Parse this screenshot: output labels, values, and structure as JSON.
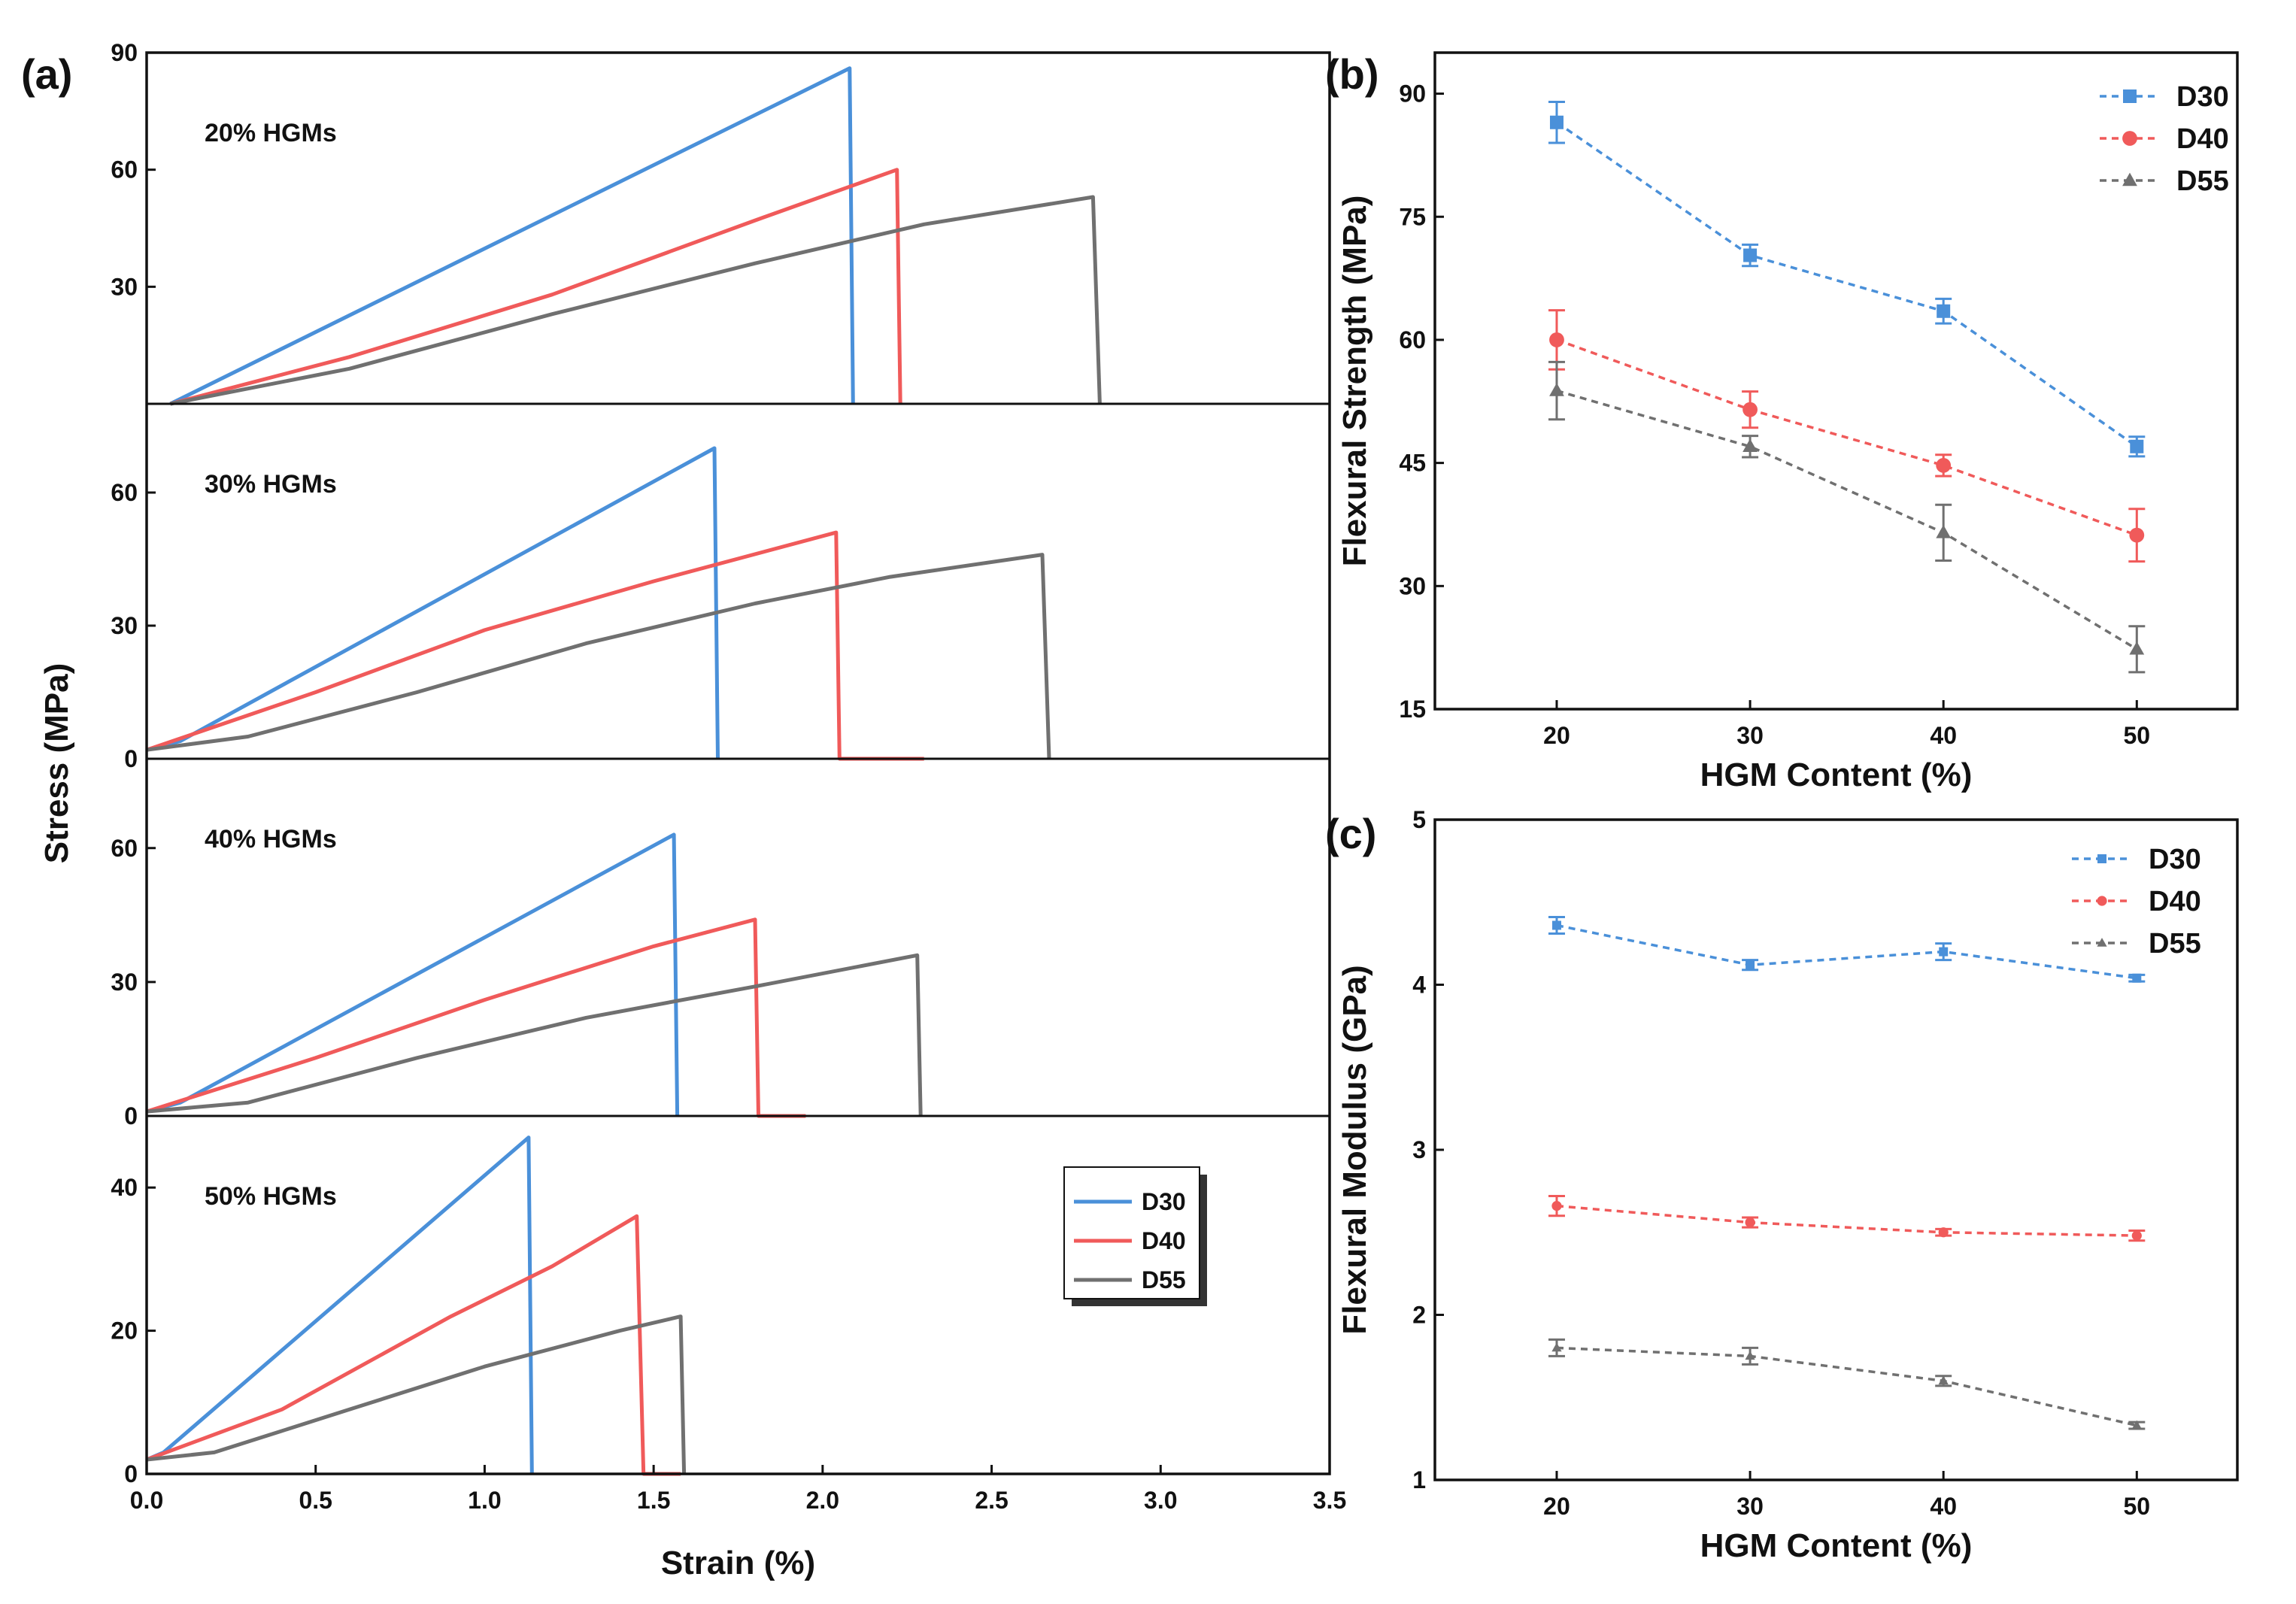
{
  "panel_labels": {
    "a": "(a)",
    "b": "(b)",
    "c": "(c)"
  },
  "colors": {
    "D30": "#4a90d9",
    "D40": "#f05a5a",
    "D55": "#707070"
  },
  "chart_data": [
    {
      "id": "a",
      "type": "line",
      "xlabel": "Strain (%)",
      "ylabel": "Stress (MPa)",
      "xlim": [
        0,
        3.5
      ],
      "xticks": [
        "0.0",
        "0.5",
        "1.0",
        "1.5",
        "2.0",
        "2.5",
        "3.0",
        "3.5"
      ],
      "legend": [
        "D30",
        "D40",
        "D55"
      ],
      "subplots": [
        {
          "title": "20% HGMs",
          "ylim": [
            0,
            90
          ],
          "yticks": [
            "30",
            "60",
            "90"
          ],
          "series": [
            {
              "name": "D30",
              "points": [
                [
                  0.07,
                  0
                ],
                [
                  2.08,
                  86
                ],
                [
                  2.09,
                  0
                ]
              ]
            },
            {
              "name": "D40",
              "points": [
                [
                  0.07,
                  0
                ],
                [
                  0.6,
                  12
                ],
                [
                  1.2,
                  28
                ],
                [
                  1.8,
                  47
                ],
                [
                  2.22,
                  60
                ],
                [
                  2.23,
                  0
                ]
              ]
            },
            {
              "name": "D55",
              "points": [
                [
                  0.07,
                  0
                ],
                [
                  0.6,
                  9
                ],
                [
                  1.2,
                  23
                ],
                [
                  1.8,
                  36
                ],
                [
                  2.3,
                  46
                ],
                [
                  2.8,
                  53
                ],
                [
                  2.82,
                  0
                ]
              ]
            }
          ]
        },
        {
          "title": "30% HGMs",
          "ylim": [
            0,
            80
          ],
          "yticks": [
            "0",
            "30",
            "60"
          ],
          "series": [
            {
              "name": "D30",
              "points": [
                [
                  0,
                  2
                ],
                [
                  0.1,
                  4
                ],
                [
                  1.68,
                  70
                ],
                [
                  1.69,
                  0
                ]
              ]
            },
            {
              "name": "D40",
              "points": [
                [
                  0,
                  2
                ],
                [
                  0.5,
                  15
                ],
                [
                  1.0,
                  29
                ],
                [
                  1.5,
                  40
                ],
                [
                  2.04,
                  51
                ],
                [
                  2.05,
                  0
                ],
                [
                  2.3,
                  0
                ]
              ]
            },
            {
              "name": "D55",
              "points": [
                [
                  0,
                  2
                ],
                [
                  0.3,
                  5
                ],
                [
                  0.8,
                  15
                ],
                [
                  1.3,
                  26
                ],
                [
                  1.8,
                  35
                ],
                [
                  2.2,
                  41
                ],
                [
                  2.65,
                  46
                ],
                [
                  2.67,
                  0
                ]
              ]
            }
          ]
        },
        {
          "title": "40% HGMs",
          "ylim": [
            0,
            80
          ],
          "yticks": [
            "0",
            "30",
            "60"
          ],
          "series": [
            {
              "name": "D30",
              "points": [
                [
                  0,
                  1
                ],
                [
                  0.1,
                  3
                ],
                [
                  1.56,
                  63
                ],
                [
                  1.57,
                  0
                ]
              ]
            },
            {
              "name": "D40",
              "points": [
                [
                  0,
                  1
                ],
                [
                  0.5,
                  13
                ],
                [
                  1.0,
                  26
                ],
                [
                  1.5,
                  38
                ],
                [
                  1.8,
                  44
                ],
                [
                  1.81,
                  0
                ],
                [
                  1.95,
                  0
                ]
              ]
            },
            {
              "name": "D55",
              "points": [
                [
                  0,
                  1
                ],
                [
                  0.3,
                  3
                ],
                [
                  0.8,
                  13
                ],
                [
                  1.3,
                  22
                ],
                [
                  1.8,
                  29
                ],
                [
                  2.28,
                  36
                ],
                [
                  2.29,
                  0
                ]
              ]
            }
          ]
        },
        {
          "title": "50% HGMs",
          "ylim": [
            0,
            50
          ],
          "yticks": [
            "0",
            "20",
            "40"
          ],
          "series": [
            {
              "name": "D30",
              "points": [
                [
                  0,
                  2
                ],
                [
                  0.05,
                  3
                ],
                [
                  1.13,
                  47
                ],
                [
                  1.14,
                  0
                ]
              ]
            },
            {
              "name": "D40",
              "points": [
                [
                  0,
                  2
                ],
                [
                  0.4,
                  9
                ],
                [
                  0.9,
                  22
                ],
                [
                  1.2,
                  29
                ],
                [
                  1.45,
                  36
                ],
                [
                  1.47,
                  0
                ],
                [
                  1.58,
                  0
                ]
              ]
            },
            {
              "name": "D55",
              "points": [
                [
                  0,
                  2
                ],
                [
                  0.2,
                  3
                ],
                [
                  0.6,
                  9
                ],
                [
                  1.0,
                  15
                ],
                [
                  1.4,
                  20
                ],
                [
                  1.58,
                  22
                ],
                [
                  1.59,
                  0
                ]
              ]
            }
          ]
        }
      ]
    },
    {
      "id": "b",
      "type": "line",
      "xlabel": "HGM Content (%)",
      "ylabel": "Flexural Strength (MPa)",
      "categories": [
        "20",
        "30",
        "40",
        "50"
      ],
      "ylim": [
        15,
        95
      ],
      "yticks": [
        "15",
        "30",
        "45",
        "60",
        "75",
        "90"
      ],
      "series": [
        {
          "name": "D30",
          "values": [
            86.5,
            70.3,
            63.5,
            47.0
          ],
          "errors": [
            2.5,
            1.3,
            1.5,
            1.2
          ]
        },
        {
          "name": "D40",
          "values": [
            60.0,
            51.5,
            44.7,
            36.2
          ],
          "errors": [
            3.6,
            2.2,
            1.3,
            3.2
          ]
        },
        {
          "name": "D55",
          "values": [
            53.8,
            47.0,
            36.5,
            22.3
          ],
          "errors": [
            3.5,
            1.3,
            3.4,
            2.8
          ]
        }
      ]
    },
    {
      "id": "c",
      "type": "line",
      "xlabel": "HGM Content (%)",
      "ylabel": "Flexural Modulus (GPa)",
      "categories": [
        "20",
        "30",
        "40",
        "50"
      ],
      "ylim": [
        1,
        5
      ],
      "yticks": [
        "1",
        "2",
        "3",
        "4",
        "5"
      ],
      "series": [
        {
          "name": "D30",
          "values": [
            4.36,
            4.12,
            4.2,
            4.04
          ],
          "errors": [
            0.05,
            0.03,
            0.05,
            0.02
          ]
        },
        {
          "name": "D40",
          "values": [
            2.66,
            2.56,
            2.5,
            2.48
          ],
          "errors": [
            0.06,
            0.03,
            0.02,
            0.03
          ]
        },
        {
          "name": "D55",
          "values": [
            1.8,
            1.75,
            1.6,
            1.33
          ],
          "errors": [
            0.05,
            0.05,
            0.03,
            0.02
          ]
        }
      ]
    }
  ]
}
